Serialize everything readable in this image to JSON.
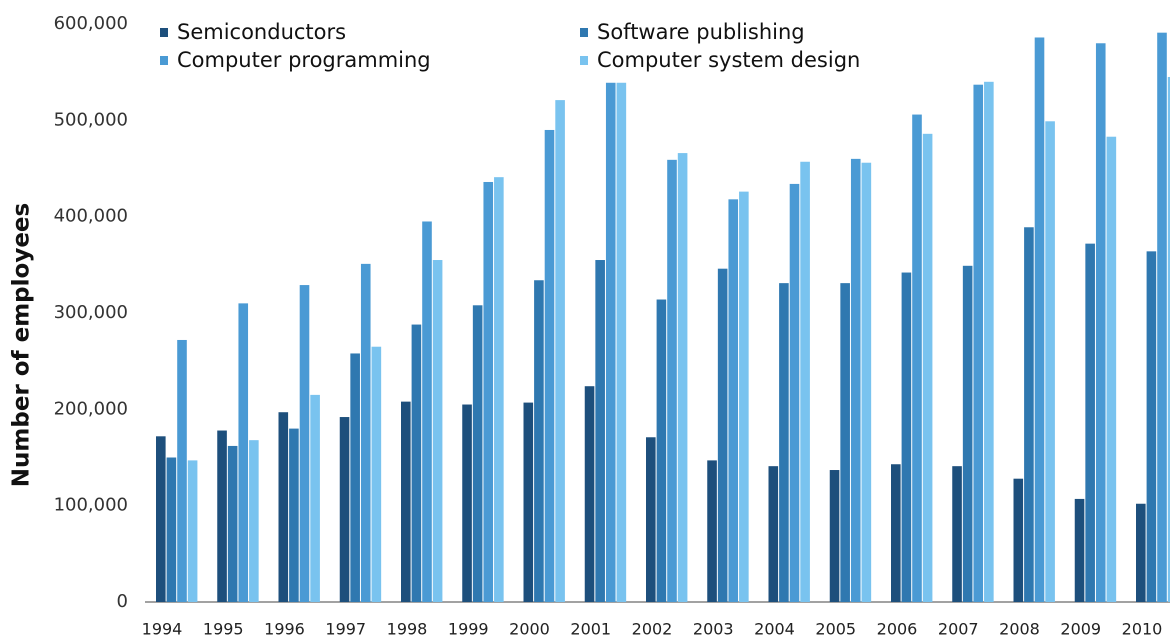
{
  "chart_data": {
    "type": "bar",
    "ylabel": "Number of employees",
    "categories": [
      "1994",
      "1995",
      "1996",
      "1997",
      "1998",
      "1999",
      "2000",
      "2001",
      "2002",
      "2003",
      "2004",
      "2005",
      "2006",
      "2007",
      "2008",
      "2009",
      "2010"
    ],
    "series": [
      {
        "name": "Semiconductors",
        "color": "#1d4f7c",
        "values": [
          172000,
          178000,
          197000,
          192000,
          208000,
          205000,
          207000,
          224000,
          171000,
          147000,
          141000,
          137000,
          143000,
          141000,
          128000,
          107000,
          102000
        ]
      },
      {
        "name": "Software publishing",
        "color": "#2f78b0",
        "values": [
          150000,
          162000,
          180000,
          258000,
          288000,
          308000,
          334000,
          355000,
          314000,
          346000,
          331000,
          331000,
          342000,
          349000,
          389000,
          372000,
          364000
        ]
      },
      {
        "name": "Computer programming",
        "color": "#4a9ad4",
        "values": [
          272000,
          310000,
          329000,
          351000,
          395000,
          436000,
          490000,
          539000,
          459000,
          418000,
          434000,
          460000,
          506000,
          537000,
          586000,
          580000,
          591000
        ]
      },
      {
        "name": "Computer system design",
        "color": "#79c3ef",
        "values": [
          147000,
          168000,
          215000,
          265000,
          355000,
          441000,
          521000,
          539000,
          466000,
          426000,
          457000,
          456000,
          486000,
          540000,
          499000,
          483000,
          545000
        ]
      }
    ],
    "ylim": [
      0,
      600000
    ],
    "yticks": [
      0,
      {
        "value": 100000,
        "label": "100,000"
      },
      {
        "value": 200000,
        "label": "200,000"
      },
      {
        "value": 300000,
        "label": "300,000"
      },
      {
        "value": 400000,
        "label": "400,000"
      },
      {
        "value": 500000,
        "label": "500,000"
      },
      {
        "value": 600000,
        "label": "600,000"
      }
    ],
    "grid": false,
    "legend": "top-left"
  }
}
